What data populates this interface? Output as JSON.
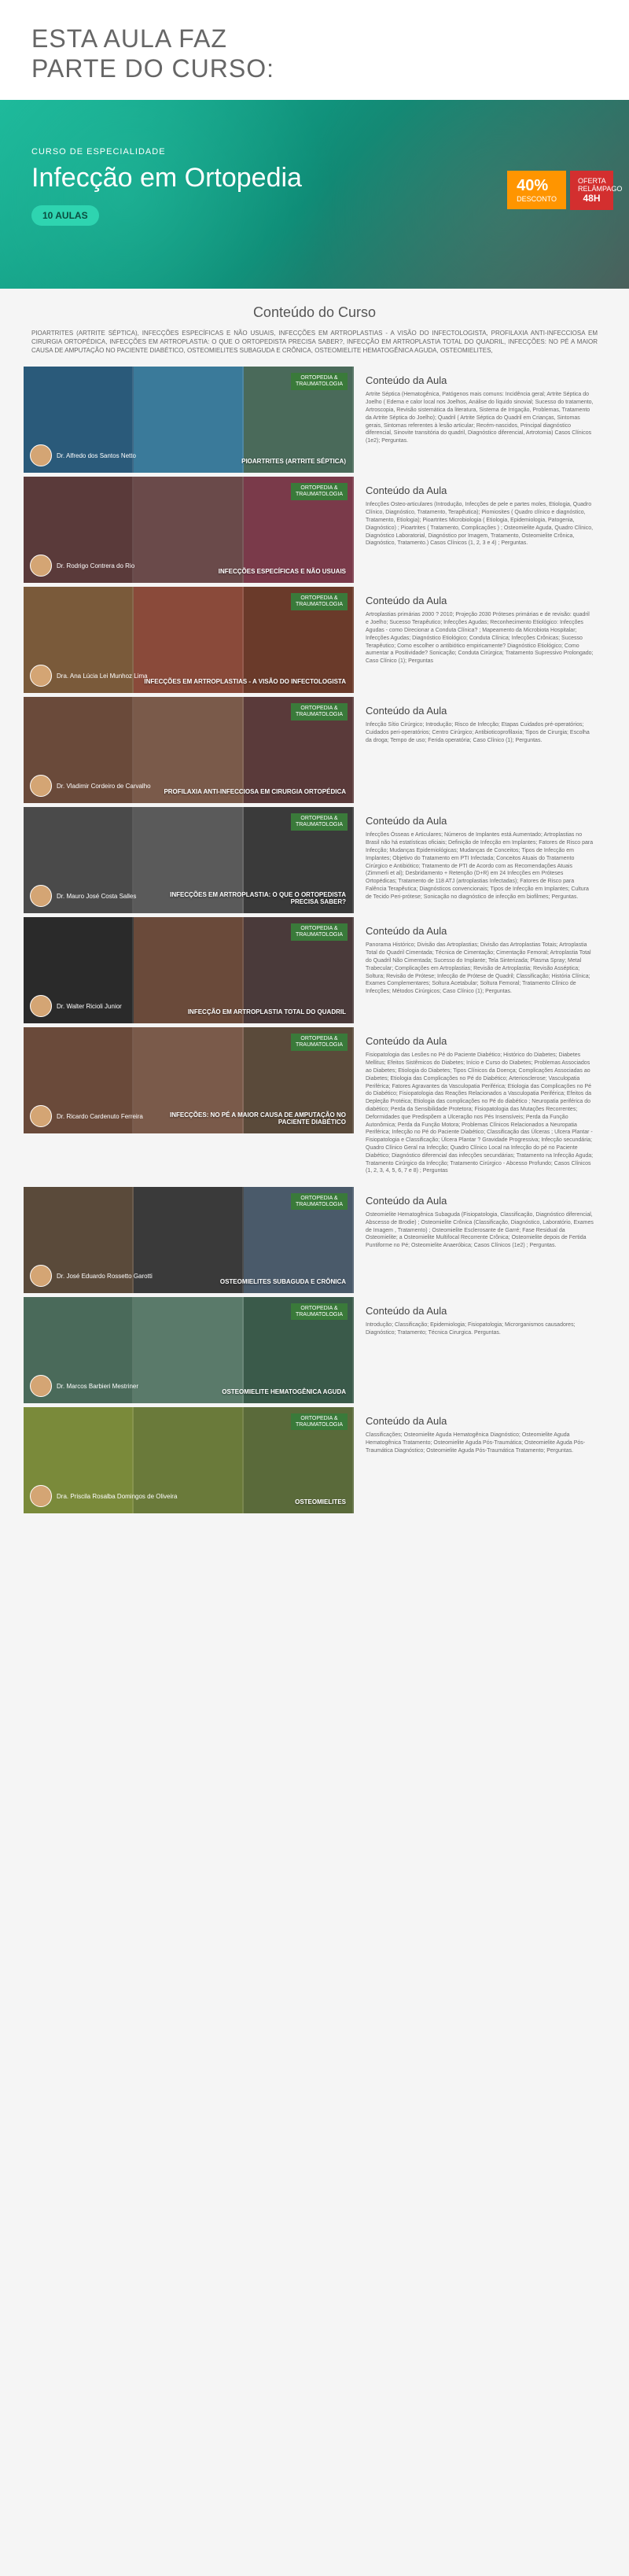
{
  "header": {
    "title_line1": "ESTA AULA FAZ",
    "title_line2": "PARTE DO CURSO:"
  },
  "hero": {
    "subtitle": "CURSO DE ESPECIALIDADE",
    "title": "Infecção em Ortopedia",
    "badge": "10 AULAS",
    "discount_pct": "40%",
    "discount_off": "DESCONTO",
    "offer_line1": "OFERTA",
    "offer_line2": "RELÂMPAGO",
    "offer_line3": "48H"
  },
  "section_title": "Conteúdo do Curso",
  "topics_text": "PIOARTRITES (ARTRITE SÉPTICA), INFECÇÕES ESPECÍFICAS E NÃO USUAIS, INFECÇÕES EM ARTROPLASTIAS - A VISÃO DO INFECTOLOGISTA, PROFILAXIA ANTI-INFECCIOSA EM CIRURGIA ORTOPÉDICA, INFECÇÕES EM ARTROPLASTIA: O QUE O ORTOPEDISTA PRECISA SABER?, INFECÇÃO EM ARTROPLASTIA TOTAL DO QUADRIL, INFECÇÕES: NO PÉ A MAIOR CAUSA DE AMPUTAÇÃO NO PACIENTE DIABÉTICO, OSTEOMIELITES SUBAGUDA E CRÔNICA, OSTEOMIELITE HEMATOGÊNICA AGUDA, OSTEOMIELITES,",
  "lesson_tag_line1": "ORTOPEDIA &",
  "lesson_tag_line2": "TRAUMATOLOGIA",
  "content_header": "Conteúdo da Aula",
  "lessons": [
    {
      "author": "Dr. Alfredo dos Santos Netto",
      "title": "PIOARTRITES (ARTRITE SÉPTICA)",
      "bg_colors": [
        "#2a5a7a",
        "#3a7a9a",
        "#4a6a5a"
      ],
      "desc": "Artrite Séptica (Hematogênica, Patógenos mais comuns: Incidência geral; Artrite Séptica do Joelho ( Edema e calor local nos Joelhos, Análise do líquido sinovial; Sucesso do tratamento, Artroscopia, Revisão sistemática da literatura, Sistema de Irrigação, Problemas, Tratamento da Artrite Séptica do Joelho); Quadril ( Artrite Séptica do Quadril em Crianças, Sintomas gerais, Sintomas referentes à lesão articular; Recém-nascidos, Principal diagnóstico diferencial, Sinovite transitória do quadril, Diagnóstico diferencial, Artrotomia) Casos Clínicos (1e2); Perguntas."
    },
    {
      "author": "Dr. Rodrigo Contrera do Rio",
      "title": "INFECÇÕES ESPECÍFICAS E NÃO USUAIS",
      "bg_colors": [
        "#5a3a3a",
        "#6a4a4a",
        "#7a3a4a"
      ],
      "desc": "Infecções Osteo-articulares (Introdução, Infecções de pele e partes moles, Etiologia, Quadro Clínico, Diagnóstico, Tratamento, Terapêutica); Piomiosites ( Quadro clínico e diagnóstico, Tratamento, Etiologia); Pioartrites Microbiologia ( Etiologia, Epidemiologia, Patogenia, Diagnóstico) ; Pioartrites ( Tratamento, Complicações ) ; Osteomielite Aguda, Quadro Clínico, Diagnóstico Laboratorial, Diagnóstico por Imagem, Tratamento, Osteomielite Crônica, Diagnóstico, Tratamento.) Casos Clínicos (1, 2, 3 e 4) ; Perguntas."
    },
    {
      "author": "Dra. Ana Lúcia Lei Munhoz Lima",
      "title": "INFECÇÕES EM ARTROPLASTIAS - A VISÃO DO INFECTOLOGISTA",
      "bg_colors": [
        "#7a5a3a",
        "#8a4a3a",
        "#6a3a2a"
      ],
      "desc": "Artroplastias primárias 2000 ? 2010; Projeção 2030 Próteses primárias e de revisão: quadril e Joelho; Sucesso Terapêutico; Infecções Agudas; Reconhecimento Etiológico: Infecções Agudas - como Direcionar a Conduta Clínica? ; Mapeamento da Microbiota Hospitalar; Infecções Agudas; Diagnóstico Etiológico; Conduta Clínica; Infecções Crônicas; Sucesso Terapêutico; Como escolher o antibiótico empiricamente? Diagnóstico Etiológico; Como aumentar a Positividade? Sonicação; Conduta Cirúrgica; Tratamento Supressivo Prolongado; Caso Clínico (1); Perguntas"
    },
    {
      "author": "Dr. Vladimir Cordeiro de Carvalho",
      "title": "PROFILAXIA ANTI-INFECCIOSA EM CIRURGIA ORTOPÉDICA",
      "bg_colors": [
        "#6a4a3a",
        "#7a5a4a",
        "#5a3a3a"
      ],
      "desc": "Infecção Sítio Cirúrgico; Introdução; Risco de Infecção; Etapas Cuidados pré-operatórios; Cuidados peri-operatórios; Centro Cirúrgico; Antibioticoprofilaxia; Tipos de Cirurgia; Escolha da droga; Tempo de uso; Ferida operatória; Caso Clínico (1); Perguntas."
    },
    {
      "author": "Dr. Mauro José Costa Salles",
      "title": "INFECÇÕES EM ARTROPLASTIA: O QUE O ORTOPEDISTA PRECISA SABER?",
      "bg_colors": [
        "#4a4a4a",
        "#5a5a5a",
        "#3a3a3a"
      ],
      "desc": "Infecções Ósseas e Articulares; Números de Implantes está Aumentado; Artroplastias no Brasil não há estatísticas oficiais; Definição de Infecção em Implantes; Fatores de Risco para Infecção; Mudanças Epidemiológicas; Mudanças de Conceitos; Tipos de Infecção em Implantes; Objetivo do Tratamento em PTI Infectada; Conceitos Atuais do Tratamento Cirúrgico e Antibiótico; Tratamento de PTI de Acordo com as Recomendações Atuais (Zimmerli et al); Desbridamento + Retenção (D+R) em 24 Infecções em Próteses Ortopédicas; Tratamento de 118 ATJ (artroplastias Infectadas); Fatores de Risco para Falência Terapêutica; Diagnósticos convencionais; Tipos de Infecção em Implantes; Cultura de Tecido Peri-prótese; Sonicação no diagnóstico de infecção em biofilmes; Perguntas."
    },
    {
      "author": "Dr. Walter Ricioli Junior",
      "title": "INFECÇÃO EM ARTROPLASTIA TOTAL DO QUADRIL",
      "bg_colors": [
        "#2a2a2a",
        "#6a4a3a",
        "#4a3a3a"
      ],
      "desc": "Panorama Histórico; Divisão das Artroplastias; Divisão das Artroplastias Totais; Artroplastia Total do Quadril Cimentada; Técnica de Cimentação; Cimentação Femoral; Artroplastia Total do Quadril Não Cimentada; Sucesso do Implante; Tela Sinterizada; Plasma Spray; Metal Trabecular; Complicações em Artroplastias; Revisão de Artroplastia; Revisão Asséptica; Soltura; Revisão de Prótese; Infecção de Prótese de Quadril; Classificação; História Clínica; Exames Complementares; Soltura Acetabular; Soltura Femoral; Tratamento Clínico de Infecções; Métodos Cirúrgicos; Caso Clínico (1); Perguntas."
    },
    {
      "author": "Dr. Ricardo Cardenuto Ferreira",
      "title": "INFECÇÕES: NO PÉ A MAIOR CAUSA DE AMPUTAÇÃO NO PACIENTE DIABÉTICO",
      "bg_colors": [
        "#6a4a3a",
        "#7a5a4a",
        "#5a4a3a"
      ],
      "desc": "Fisiopatologia das Lesões no Pé do Paciente Diabético; Histórico do Diabetes; Diabetes Mellitus; Efeitos Sistêmicos do Diabetes; Início e Curso do Diabetes; Problemas Associados ao Diabetes; Etiologia do Diabetes; Tipos Clínicos da Doença; Complicações Associadas ao Diabetes; Etiologia das Complicações no Pé do Diabético; Arteriosclerose; Vasculopatia Periférica; Fatores Agravantes da Vasculopatia Periférica; Etiologia das Complicações no Pé do Diabético; Fisiopatologia das Reações Relacionados a Vasculopatia Periférica; Efeitos da Depleção Protéica; Etiologia das complicações no Pé do diabético ; Neuropatia periférica do diabético; Perda da Sensibilidade Protetora; Fisiopatologia das Mutações Recorrentes; Deformidades que Predispõem a Ulceração nos Pés Insensíveis; Perda da Função Autonômica; Perda da Função Motora; Problemas Clínicos Relacionados a Neuropatia Periférica; Infecção no Pé do Paciente Diabético; Classificação das Úlceras ; Ulcera Plantar - Fisiopatologia e Classificação; Úlcera Plantar ? Gravidade Progressiva; Infecção secundária; Quadro Clínico Geral na Infecção; Quadro Clínico Local na Infecção do pé no Paciente Diabético; Diagnóstico diferencial das infecções secundárias; Tratamento na Infecção Aguda; Tratamento Cirúrgico da Infecção; Tratamento Cirúrgico - Abcesso Profundo; Casos Clínicos (1, 2, 3, 4, 5, 6, 7 e 8) ; Perguntas"
    },
    {
      "author": "Dr. José Eduardo Rossetto Garotti",
      "title": "OSTEOMIELITES SUBAGUDA E CRÔNICA",
      "bg_colors": [
        "#5a4a3a",
        "#3a3a3a",
        "#4a5a6a"
      ],
      "desc": "Osteomielite Hematogênica Subaguda (Fisiopatologia, Classificação, Diagnóstico diferencial, Abscesso de Brodie) ; Osteomielite Crônica (Classificação, Diagnóstico, Laboratório, Exames de Imagem , Tratamento) ; Osteomielite Esclerosante de Garré; Fase Residual da Osteomielite; a Osteomielite Multifocal Recorrente Crônica; Osteomielite depois de Fertida Puntiforme no Pé; Osteomielite Anaeróbica; Casos Clínicos (1e2) ; Perguntas."
    },
    {
      "author": "Dr. Marcos Barbieri Mestriner",
      "title": "OSTEOMIELITE HEMATOGÊNICA AGUDA",
      "bg_colors": [
        "#4a6a5a",
        "#5a7a6a",
        "#3a5a4a"
      ],
      "desc": "Introdução; Classificação; Epidemiologia; Fisiopatologia; Microrganismos causadores; Diagnóstico; Tratamento; Técnica Cirurgica. Perguntas."
    },
    {
      "author": "Dra. Priscila Rosalba Domingos de Oliveira",
      "title": "OSTEOMIELITES",
      "bg_colors": [
        "#7a8a3a",
        "#6a7a3a",
        "#5a6a3a"
      ],
      "desc": "Classificações; Osteomielite Aguda Hematogênica Diagnóstico; Osteomielite Aguda Hematogênica Tratamento; Osteomielite Aguda Pós-Traumática; Osteomielite Aguda Pós-Traumática Diagnóstico; Osteomielite Aguda Pós-Traumática Tratamento; Perguntas."
    }
  ]
}
